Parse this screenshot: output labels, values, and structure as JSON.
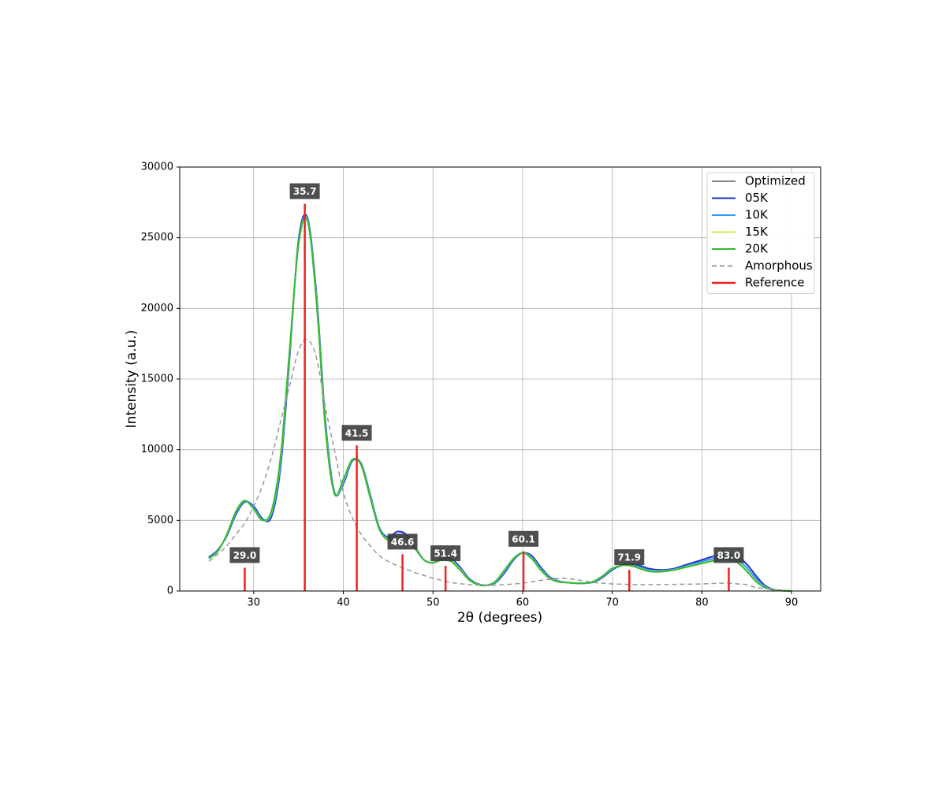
{
  "chart_data": {
    "type": "line",
    "xlabel": "2θ (degrees)",
    "ylabel": "Intensity (a.u.)",
    "x": [
      25,
      26,
      27,
      28,
      29,
      30,
      31,
      32,
      33,
      34,
      35,
      36,
      37,
      38,
      39,
      40,
      41,
      42,
      43,
      44,
      45,
      46,
      47,
      48,
      49,
      50,
      51,
      52,
      53,
      54,
      55,
      56,
      57,
      58,
      59,
      60,
      61,
      62,
      63,
      64,
      65,
      66,
      67,
      68,
      69,
      70,
      71,
      72,
      73,
      74,
      75,
      76,
      77,
      78,
      79,
      80,
      81,
      82,
      83,
      84,
      85,
      86,
      87,
      88,
      89,
      90
    ],
    "series": [
      {
        "name": "Optimized",
        "color": "#888888",
        "values": [
          2400,
          2900,
          3900,
          5400,
          6300,
          6000,
          5100,
          5300,
          8800,
          16500,
          24800,
          26400,
          21000,
          12000,
          7000,
          7600,
          9200,
          9000,
          6800,
          4500,
          3800,
          4200,
          4000,
          3100,
          2200,
          2000,
          2300,
          2300,
          1700,
          900,
          500,
          400,
          600,
          1300,
          2200,
          2700,
          2500,
          1700,
          1000,
          700,
          600,
          550,
          550,
          650,
          1000,
          1500,
          1800,
          1900,
          1800,
          1600,
          1500,
          1500,
          1600,
          1800,
          2000,
          2200,
          2400,
          2500,
          2500,
          2400,
          1900,
          1100,
          400,
          100,
          30,
          0
        ]
      },
      {
        "name": "05K",
        "color": "#2233cc",
        "values": [
          2400,
          2900,
          3900,
          5400,
          6300,
          6000,
          5100,
          5300,
          8800,
          16500,
          24800,
          26400,
          21000,
          12000,
          7000,
          7600,
          9200,
          9000,
          6800,
          4500,
          3800,
          4200,
          4000,
          3100,
          2200,
          2000,
          2300,
          2300,
          1700,
          900,
          500,
          400,
          600,
          1300,
          2200,
          2700,
          2500,
          1700,
          1000,
          700,
          600,
          550,
          550,
          650,
          1000,
          1500,
          1800,
          1900,
          1800,
          1600,
          1500,
          1500,
          1600,
          1800,
          2000,
          2200,
          2400,
          2500,
          2500,
          2400,
          1900,
          1100,
          400,
          100,
          30,
          0
        ]
      },
      {
        "name": "10K",
        "color": "#3399ff",
        "values": [
          2350,
          2850,
          3950,
          5500,
          6350,
          5900,
          5050,
          5500,
          9100,
          16800,
          24600,
          26300,
          20800,
          11800,
          6950,
          7700,
          9250,
          8950,
          6700,
          4450,
          3700,
          4000,
          3850,
          3050,
          2200,
          2000,
          2250,
          2200,
          1600,
          850,
          480,
          400,
          650,
          1400,
          2250,
          2700,
          2400,
          1600,
          950,
          680,
          600,
          550,
          550,
          680,
          1050,
          1550,
          1800,
          1850,
          1700,
          1500,
          1420,
          1450,
          1550,
          1720,
          1900,
          2080,
          2250,
          2350,
          2350,
          2200,
          1650,
          900,
          330,
          90,
          25,
          0
        ]
      },
      {
        "name": "15K",
        "color": "#ccee44",
        "values": [
          2300,
          2800,
          4000,
          5600,
          6400,
          5800,
          5000,
          5650,
          9400,
          16900,
          24500,
          26200,
          20600,
          11600,
          6900,
          7850,
          9300,
          8900,
          6650,
          4400,
          3650,
          3850,
          3750,
          3000,
          2200,
          2000,
          2200,
          2150,
          1550,
          820,
          460,
          400,
          680,
          1480,
          2300,
          2700,
          2320,
          1520,
          910,
          660,
          600,
          550,
          550,
          700,
          1100,
          1600,
          1800,
          1800,
          1620,
          1420,
          1370,
          1410,
          1510,
          1670,
          1820,
          1970,
          2120,
          2220,
          2220,
          2050,
          1450,
          730,
          260,
          80,
          20,
          0
        ]
      },
      {
        "name": "20K",
        "color": "#33bb33",
        "values": [
          2300,
          2800,
          4000,
          5600,
          6400,
          5800,
          5000,
          5700,
          9500,
          17000,
          24500,
          26200,
          20500,
          11500,
          6900,
          7900,
          9300,
          8900,
          6600,
          4400,
          3600,
          3800,
          3700,
          3000,
          2200,
          2000,
          2200,
          2100,
          1500,
          800,
          450,
          400,
          700,
          1500,
          2300,
          2700,
          2300,
          1500,
          900,
          650,
          600,
          550,
          550,
          700,
          1100,
          1600,
          1800,
          1800,
          1600,
          1400,
          1350,
          1400,
          1500,
          1650,
          1800,
          1950,
          2100,
          2200,
          2200,
          2000,
          1400,
          700,
          250,
          80,
          20,
          0
        ]
      },
      {
        "name": "Amorphous",
        "color": "#999999",
        "linestyle": "dashed",
        "values": [
          2100,
          2600,
          3200,
          4000,
          4800,
          6000,
          7500,
          9500,
          12000,
          14500,
          17000,
          17800,
          16500,
          13000,
          10000,
          7000,
          5200,
          4000,
          3200,
          2500,
          2100,
          1800,
          1550,
          1300,
          1100,
          900,
          750,
          600,
          520,
          450,
          420,
          400,
          420,
          450,
          500,
          550,
          650,
          750,
          830,
          900,
          880,
          800,
          700,
          600,
          550,
          500,
          480,
          460,
          450,
          450,
          450,
          460,
          470,
          480,
          490,
          500,
          520,
          550,
          550,
          500,
          450,
          250,
          180,
          100,
          50,
          0
        ]
      },
      {
        "name": "Reference",
        "color": "#ee2222",
        "type": "stem",
        "x": [
          29.0,
          35.7,
          41.5,
          46.6,
          51.4,
          60.1,
          71.9,
          83.0
        ],
        "values": [
          1650,
          27400,
          10300,
          2600,
          1780,
          2800,
          1500,
          1650
        ],
        "value_labels": [
          "29.0",
          "35.7",
          "41.5",
          "46.6",
          "51.4",
          "60.1",
          "71.9",
          "83.0"
        ]
      }
    ],
    "xlim": [
      21.75,
      93.25
    ],
    "xticks": [
      30,
      40,
      50,
      60,
      70,
      80,
      90
    ],
    "ylim": [
      0,
      30000
    ],
    "yticks": [
      0,
      5000,
      10000,
      15000,
      20000,
      25000,
      30000
    ],
    "grid": true,
    "legend": "upper right"
  }
}
